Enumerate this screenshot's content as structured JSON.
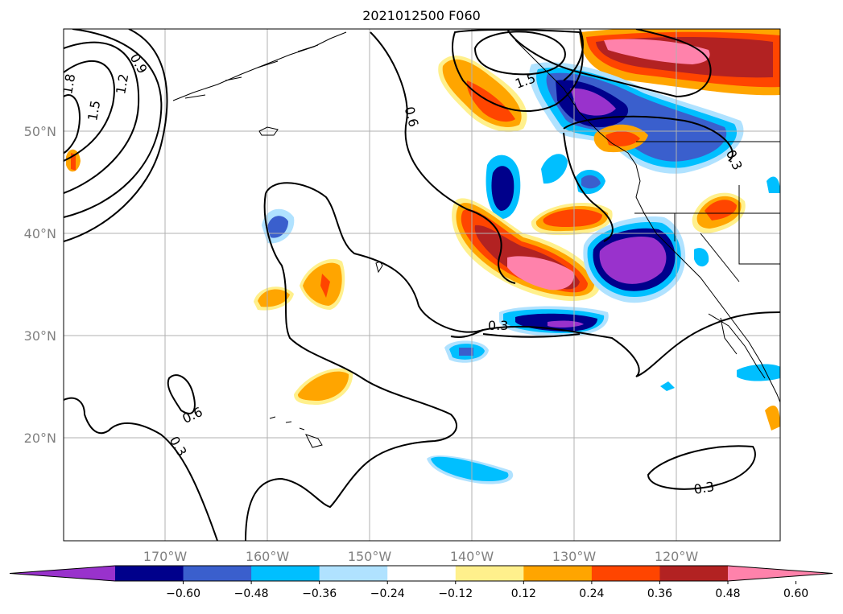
{
  "title": "2021012500 F060",
  "map": {
    "lat_ticks": [
      "50°N",
      "40°N",
      "30°N",
      "20°N"
    ],
    "lon_ticks": [
      "170°W",
      "160°W",
      "150°W",
      "140°W",
      "130°W",
      "120°W"
    ],
    "contour_labels": [
      "1.8",
      "1.5",
      "1.2",
      "0.9",
      "0.6",
      "1.5",
      "0.3",
      "0.3",
      "0.6",
      "0.3",
      "0.3"
    ]
  },
  "colorbar": {
    "tick_labels": [
      "−0.60",
      "−0.48",
      "−0.36",
      "−0.24",
      "−0.12",
      "0.12",
      "0.24",
      "0.36",
      "0.48",
      "0.60"
    ],
    "colors": [
      "#9932cc",
      "#00008b",
      "#3a5fcd",
      "#00bfff",
      "#b0e2ff",
      "#ffffff",
      "#fff08c",
      "#ffa500",
      "#ff4500",
      "#b22222",
      "#ff82ab"
    ]
  }
}
